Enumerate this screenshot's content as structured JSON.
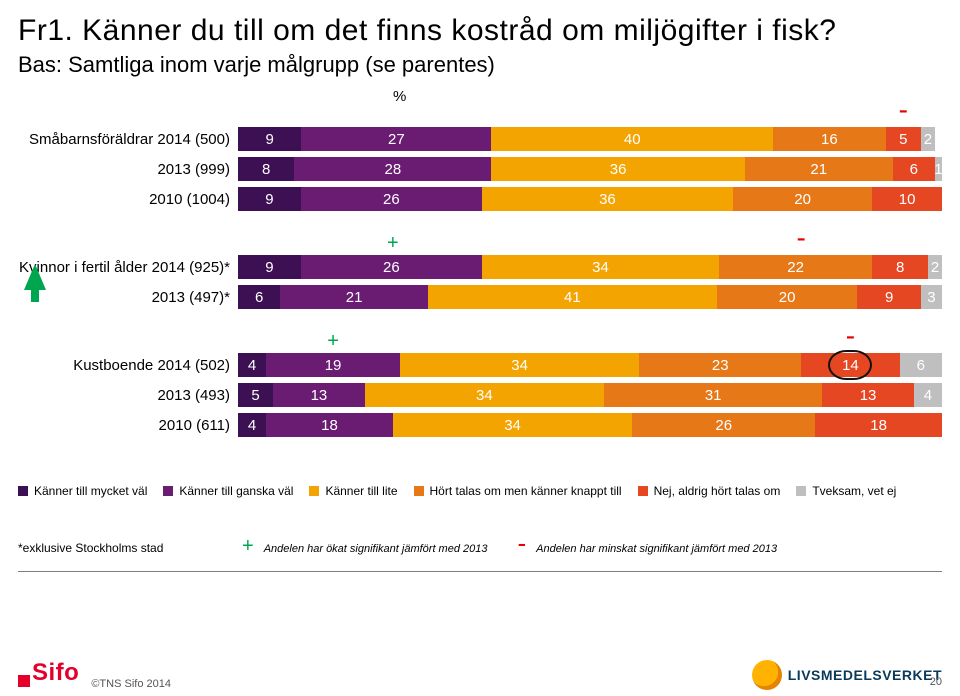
{
  "title": "Fr1. Känner du till om det finns kostråd om miljögifter i fisk?",
  "subtitle": "Bas: Samtliga inom varje målgrupp (se parentes)",
  "title_fontsize": 30,
  "subtitle_fontsize": 22,
  "pct_symbol": "%",
  "colors": {
    "series": [
      "#3c1053",
      "#6a1b72",
      "#f4a400",
      "#e67817",
      "#e54722",
      "#bfbfbf"
    ],
    "plus": "#00a64f",
    "minus": "#e60000",
    "arrow": "#00a64f",
    "text_on_bar": "#ffffff",
    "grid": "#ffffff"
  },
  "row_label_fontsize": 15,
  "value_fontsize": 15,
  "chart": {
    "type": "stacked-bar",
    "axis_max": 100,
    "groups": [
      {
        "rows": [
          {
            "label": "Småbarnsföräldrar 2014 (500)",
            "values": [
              9,
              27,
              40,
              16,
              5,
              2
            ]
          },
          {
            "label": "2013 (999)",
            "values": [
              8,
              28,
              36,
              21,
              6,
              1
            ]
          },
          {
            "label": "2010 (1004)",
            "values": [
              9,
              26,
              36,
              20,
              10,
              0
            ]
          }
        ],
        "marks": [
          {
            "sym": "-",
            "col": 0,
            "above": true,
            "series": 4
          }
        ]
      },
      {
        "rows": [
          {
            "label": "Kvinnor i fertil ålder 2014 (925)*",
            "values": [
              9,
              26,
              34,
              22,
              8,
              2
            ]
          },
          {
            "label": "2013 (497)*",
            "values": [
              6,
              21,
              41,
              20,
              9,
              3
            ]
          }
        ],
        "marks": [
          {
            "sym": "+",
            "col": 0,
            "above": true,
            "series": 1
          },
          {
            "sym": "-",
            "col": 0,
            "above": true,
            "series": 3
          }
        ],
        "arrow_before": true
      },
      {
        "rows": [
          {
            "label": "Kustboende 2014 (502)",
            "values": [
              4,
              19,
              34,
              23,
              14,
              6
            ]
          },
          {
            "label": "2013 (493)",
            "values": [
              5,
              13,
              34,
              31,
              13,
              4
            ]
          },
          {
            "label": "2010 (611)",
            "values": [
              4,
              18,
              34,
              26,
              18,
              0
            ]
          }
        ],
        "marks": [
          {
            "sym": "+",
            "col": 0,
            "above": true,
            "series": 1
          },
          {
            "sym": "-",
            "col": 0,
            "above": true,
            "series": 4
          }
        ],
        "circle": {
          "row": 0,
          "series": 4
        }
      }
    ]
  },
  "legend": {
    "fontsize": 12,
    "items": [
      {
        "label": "Känner till mycket väl",
        "color": "#3c1053"
      },
      {
        "label": "Känner till ganska väl",
        "color": "#6a1b72"
      },
      {
        "label": "Känner till lite",
        "color": "#f4a400"
      },
      {
        "label": "Hört talas om men känner knappt till",
        "color": "#e67817"
      },
      {
        "label": "Nej, aldrig hört talas om",
        "color": "#e54722"
      },
      {
        "label": "Tveksam, vet ej",
        "color": "#bfbfbf"
      }
    ]
  },
  "footnote": {
    "left": "*exklusive Stockholms stad",
    "plus": "+",
    "plus_text": "Andelen har ökat signifikant jämfört med 2013",
    "minus": "-",
    "minus_text": "Andelen har minskat signifikant jämfört med 2013"
  },
  "brand": {
    "sifo": "Sifo",
    "copyright": "©TNS Sifo 2014",
    "lv": "LIVSMEDELSVERKET",
    "page_num": "20"
  }
}
